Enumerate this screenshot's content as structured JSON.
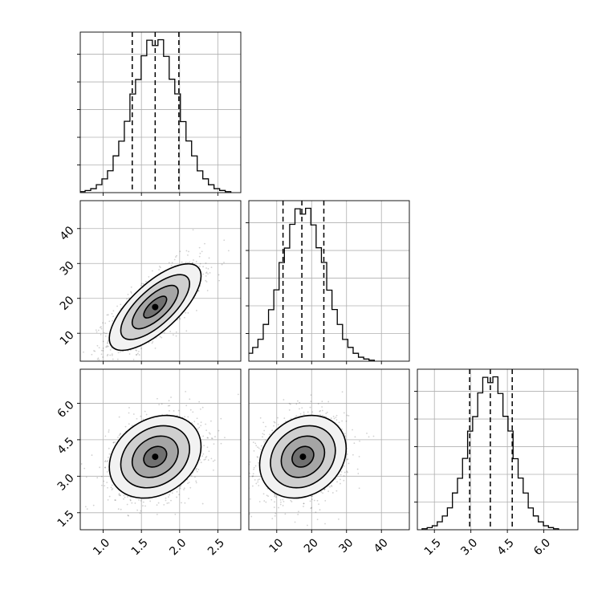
{
  "chart_data": {
    "type": "corner",
    "parameters": [
      {
        "range": [
          0.7,
          2.8
        ],
        "ticks": [
          1.0,
          1.5,
          2.0,
          2.5
        ],
        "tick_labels": [
          "1.0",
          "1.5",
          "2.0",
          "2.5"
        ],
        "mean": 1.68,
        "std": 0.3,
        "quantiles": [
          1.38,
          1.68,
          1.99
        ]
      },
      {
        "range": [
          2,
          48
        ],
        "ticks": [
          10,
          20,
          30,
          40
        ],
        "tick_labels": [
          "10",
          "20",
          "30",
          "40"
        ],
        "mean": 17.5,
        "std": 6.2,
        "quantiles": [
          11.8,
          17.2,
          23.5
        ]
      },
      {
        "range": [
          0.8,
          7.4
        ],
        "ticks": [
          1.5,
          3.0,
          4.5,
          6.0
        ],
        "tick_labels": [
          "1.5",
          "3.0",
          "4.5",
          "6.0"
        ],
        "mean": 3.8,
        "std": 0.85,
        "quantiles": [
          2.95,
          3.8,
          4.7
        ]
      }
    ],
    "correlations": [
      [
        1,
        0.72,
        0.25
      ],
      [
        0.72,
        1,
        0.2
      ],
      [
        0.25,
        0.2,
        1
      ]
    ],
    "histogram_bins": 27,
    "contour_levels": [
      0.5,
      1.0,
      1.5,
      2.0
    ],
    "quantile_line_style": "dashed",
    "grid": true,
    "title": "",
    "legend": "none"
  }
}
